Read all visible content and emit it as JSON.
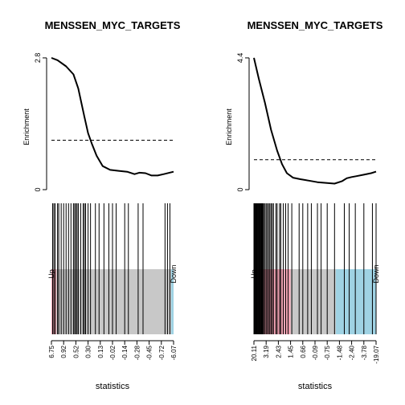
{
  "chart_data": [
    {
      "type": "line",
      "title": "MENSSEN_MYC_TARGETS",
      "ylabel": "Enrichment",
      "xlabel": "statistics",
      "ylim": [
        0,
        2.8
      ],
      "y_ticks": [
        "0",
        "2.8"
      ],
      "threshold": 1.05,
      "enrichment_curve": {
        "x": [
          0,
          0.05,
          0.12,
          0.18,
          0.22,
          0.27,
          0.3,
          0.33,
          0.37,
          0.42,
          0.48,
          0.55,
          0.62,
          0.68,
          0.72,
          0.77,
          0.82,
          0.87,
          0.92,
          1.0
        ],
        "y": [
          2.8,
          2.75,
          2.62,
          2.45,
          2.15,
          1.55,
          1.2,
          0.98,
          0.72,
          0.5,
          0.42,
          0.4,
          0.38,
          0.33,
          0.36,
          0.35,
          0.3,
          0.3,
          0.33,
          0.38
        ]
      },
      "barcode_positions": [
        0.01,
        0.02,
        0.03,
        0.05,
        0.06,
        0.08,
        0.1,
        0.12,
        0.14,
        0.16,
        0.18,
        0.19,
        0.2,
        0.21,
        0.22,
        0.24,
        0.26,
        0.27,
        0.28,
        0.3,
        0.32,
        0.36,
        0.39,
        0.43,
        0.47,
        0.5,
        0.53,
        0.6,
        0.63,
        0.71,
        0.75,
        0.93,
        0.95,
        0.97
      ],
      "band_labels": {
        "up": "Up",
        "down": "Down"
      },
      "band_split": {
        "up_end": 0.04,
        "down_start": 0.98
      },
      "x_tick_labels": [
        "6.75",
        "0.92",
        "0.52",
        "0.30",
        "0.13",
        "-0.02",
        "-0.14",
        "-0.28",
        "-0.45",
        "-0.72",
        "-6.07"
      ],
      "colors": {
        "up_band": "#f4a5b5",
        "mid_band": "#c8c8c8",
        "down_band": "#9fd2e3"
      }
    },
    {
      "type": "line",
      "title": "MENSSEN_MYC_TARGETS",
      "ylabel": "Enrichment",
      "xlabel": "statistics",
      "ylim": [
        0,
        4.4
      ],
      "y_ticks": [
        "0",
        "4.4"
      ],
      "threshold": 1.0,
      "enrichment_curve": {
        "x": [
          0,
          0.04,
          0.09,
          0.14,
          0.19,
          0.23,
          0.27,
          0.32,
          0.38,
          0.45,
          0.52,
          0.6,
          0.66,
          0.72,
          0.76,
          0.8,
          0.84,
          0.9,
          0.96,
          1.0
        ],
        "y": [
          4.4,
          3.7,
          2.9,
          2.0,
          1.3,
          0.85,
          0.55,
          0.4,
          0.35,
          0.3,
          0.25,
          0.22,
          0.2,
          0.28,
          0.38,
          0.42,
          0.45,
          0.5,
          0.55,
          0.6
        ]
      },
      "barcode_positions": [
        0.0,
        0.005,
        0.01,
        0.015,
        0.02,
        0.025,
        0.03,
        0.035,
        0.04,
        0.045,
        0.05,
        0.055,
        0.06,
        0.065,
        0.07,
        0.075,
        0.08,
        0.09,
        0.1,
        0.11,
        0.12,
        0.13,
        0.14,
        0.15,
        0.16,
        0.18,
        0.19,
        0.21,
        0.22,
        0.24,
        0.26,
        0.28,
        0.31,
        0.37,
        0.4,
        0.44,
        0.47,
        0.52,
        0.55,
        0.6,
        0.66,
        0.74,
        0.78,
        0.83,
        0.9,
        0.97,
        1.0
      ],
      "band_labels": {
        "up": "Up",
        "down": "Down"
      },
      "band_split": {
        "up_end": 0.3,
        "down_start": 0.67
      },
      "x_tick_labels": [
        "20.11",
        "3.19",
        "2.43",
        "1.45",
        "0.66",
        "-0.09",
        "-0.75",
        "-1.48",
        "-2.40",
        "-3.78",
        "-19.07"
      ],
      "colors": {
        "up_band": "#f4a5b5",
        "mid_band": "#c8c8c8",
        "down_band": "#9fd2e3"
      }
    }
  ]
}
